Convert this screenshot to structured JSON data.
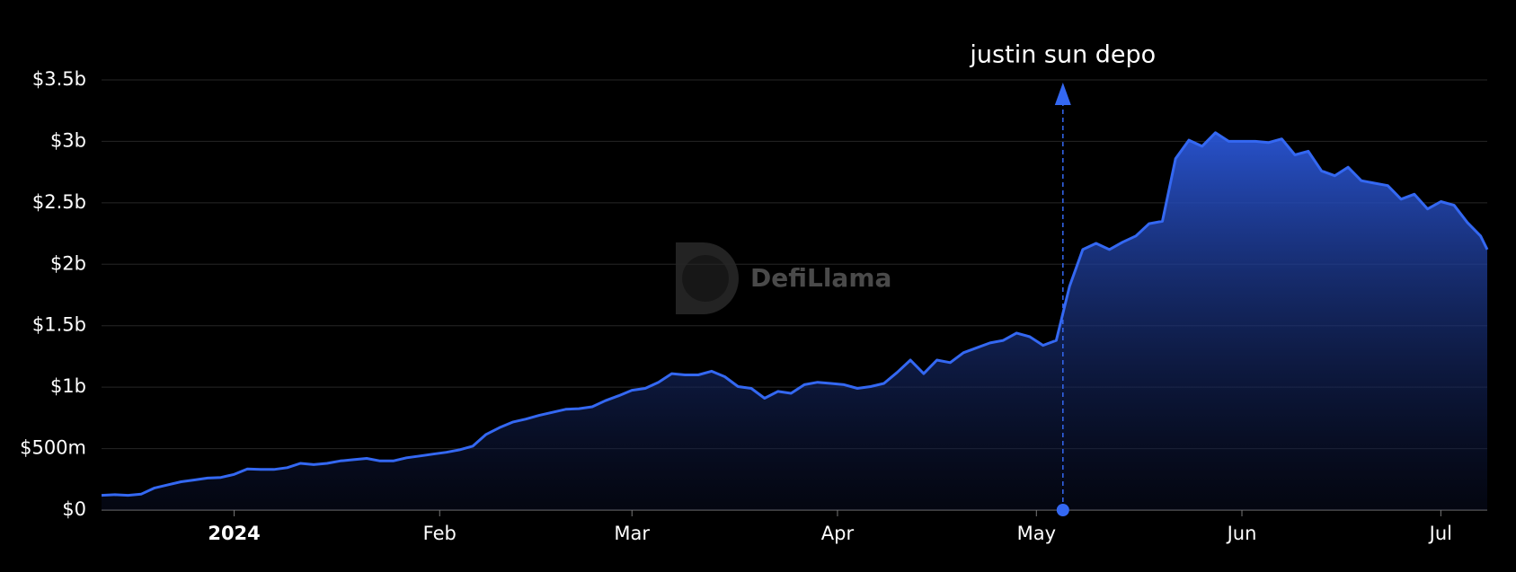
{
  "chart_data": {
    "type": "area",
    "x": [
      -20,
      -18,
      -16,
      -14,
      -12,
      -10,
      -8,
      -6,
      -4,
      -2,
      0,
      2,
      4,
      6,
      8,
      10,
      12,
      14,
      16,
      18,
      20,
      22,
      24,
      26,
      28,
      30,
      32,
      34,
      36,
      38,
      40,
      42,
      44,
      46,
      48,
      50,
      52,
      54,
      56,
      58,
      60,
      62,
      64,
      66,
      68,
      70,
      72,
      74,
      76,
      78,
      80,
      82,
      84,
      86,
      88,
      90,
      92,
      94,
      96,
      98,
      100,
      102,
      104,
      106,
      108,
      110,
      112,
      114,
      116,
      118,
      120,
      122,
      124,
      126,
      128,
      130,
      132,
      134,
      136,
      138,
      140,
      142,
      144,
      146,
      148,
      150,
      152,
      154,
      156,
      158,
      160,
      162,
      164,
      166,
      168,
      170,
      172,
      174,
      176,
      178,
      180,
      182,
      184,
      186,
      188,
      189
    ],
    "series": [
      {
        "color": "#3468f2",
        "values": [
          120000000,
          125000000,
          120000000,
          130000000,
          180000000,
          205000000,
          230000000,
          245000000,
          260000000,
          265000000,
          290000000,
          335000000,
          330000000,
          330000000,
          345000000,
          380000000,
          370000000,
          380000000,
          400000000,
          410000000,
          420000000,
          400000000,
          400000000,
          425000000,
          440000000,
          455000000,
          470000000,
          490000000,
          520000000,
          615000000,
          670000000,
          715000000,
          740000000,
          770000000,
          795000000,
          820000000,
          825000000,
          840000000,
          890000000,
          930000000,
          975000000,
          990000000,
          1040000000,
          1110000000,
          1100000000,
          1100000000,
          1130000000,
          1085000000,
          1005000000,
          990000000,
          910000000,
          965000000,
          950000000,
          1020000000,
          1040000000,
          1030000000,
          1020000000,
          990000000,
          1005000000,
          1030000000,
          1120000000,
          1220000000,
          1110000000,
          1220000000,
          1200000000,
          1280000000,
          1320000000,
          1360000000,
          1380000000,
          1440000000,
          1410000000,
          1340000000,
          1380000000,
          1820000000,
          2120000000,
          2170000000,
          2120000000,
          2180000000,
          2230000000,
          2330000000,
          2350000000,
          2860000000,
          3010000000,
          2960000000,
          3070000000,
          3000000000,
          3000000000,
          3000000000,
          2990000000,
          3020000000,
          2890000000,
          2920000000,
          2760000000,
          2720000000,
          2790000000,
          2680000000,
          2660000000,
          2640000000,
          2530000000,
          2570000000,
          2450000000,
          2510000000,
          2480000000,
          2340000000,
          2230000000,
          2120000000
        ]
      }
    ],
    "xlim": [
      -20,
      189
    ],
    "xticks": [
      {
        "value": 0,
        "label": "2024"
      },
      {
        "value": 31,
        "label": "Feb"
      },
      {
        "value": 60,
        "label": "Mar"
      },
      {
        "value": 91,
        "label": "Apr"
      },
      {
        "value": 121,
        "label": "May"
      },
      {
        "value": 152,
        "label": "Jun"
      },
      {
        "value": 182,
        "label": "Jul"
      }
    ],
    "ylim": [
      0,
      3500000000
    ],
    "yticks": [
      {
        "value": 0,
        "label": "$0"
      },
      {
        "value": 500000000,
        "label": "$500m"
      },
      {
        "value": 1000000000,
        "label": "$1b"
      },
      {
        "value": 1500000000,
        "label": "$1.5b"
      },
      {
        "value": 2000000000,
        "label": "$2b"
      },
      {
        "value": 2500000000,
        "label": "$2.5b"
      },
      {
        "value": 3000000000,
        "label": "$3b"
      },
      {
        "value": 3500000000,
        "label": "$3.5b"
      }
    ],
    "grid": true,
    "annotations": [
      {
        "text": "justin sun depo",
        "x": 125
      }
    ],
    "watermark": "DefiLlama"
  }
}
